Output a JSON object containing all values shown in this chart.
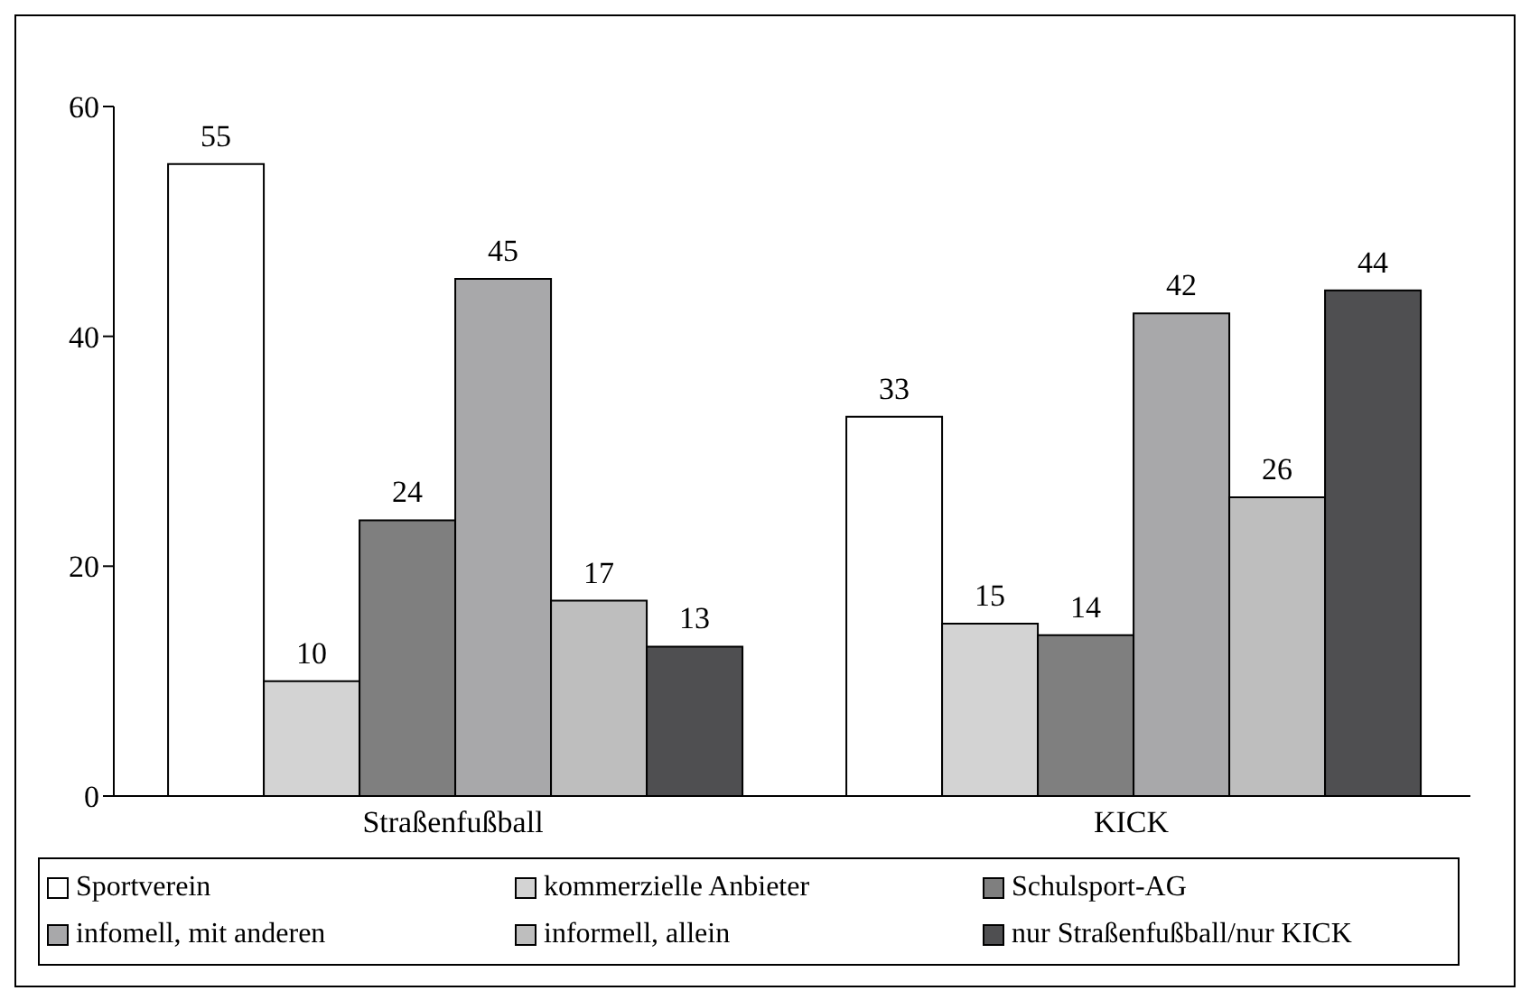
{
  "chart_data": {
    "type": "bar",
    "categories": [
      "Straßenfußball",
      "KICK"
    ],
    "series": [
      {
        "name": "Sportverein",
        "color": "#ffffff",
        "values": [
          55,
          33
        ]
      },
      {
        "name": "kommerzielle Anbieter",
        "color": "#d3d3d3",
        "values": [
          10,
          15
        ]
      },
      {
        "name": "Schulsport-AG",
        "color": "#7f7f7f",
        "values": [
          24,
          14
        ]
      },
      {
        "name": "infomell, mit anderen",
        "color": "#a8a8aa",
        "values": [
          45,
          42
        ]
      },
      {
        "name": "informell, allein",
        "color": "#bebebe",
        "values": [
          17,
          26
        ]
      },
      {
        "name": "nur Straßenfußball/nur KICK",
        "color": "#4f4f51",
        "values": [
          13,
          44
        ]
      }
    ],
    "ylim": [
      0,
      60
    ],
    "yticks": [
      0,
      20,
      40,
      60
    ],
    "legend": "bottom",
    "data_labels": true
  }
}
